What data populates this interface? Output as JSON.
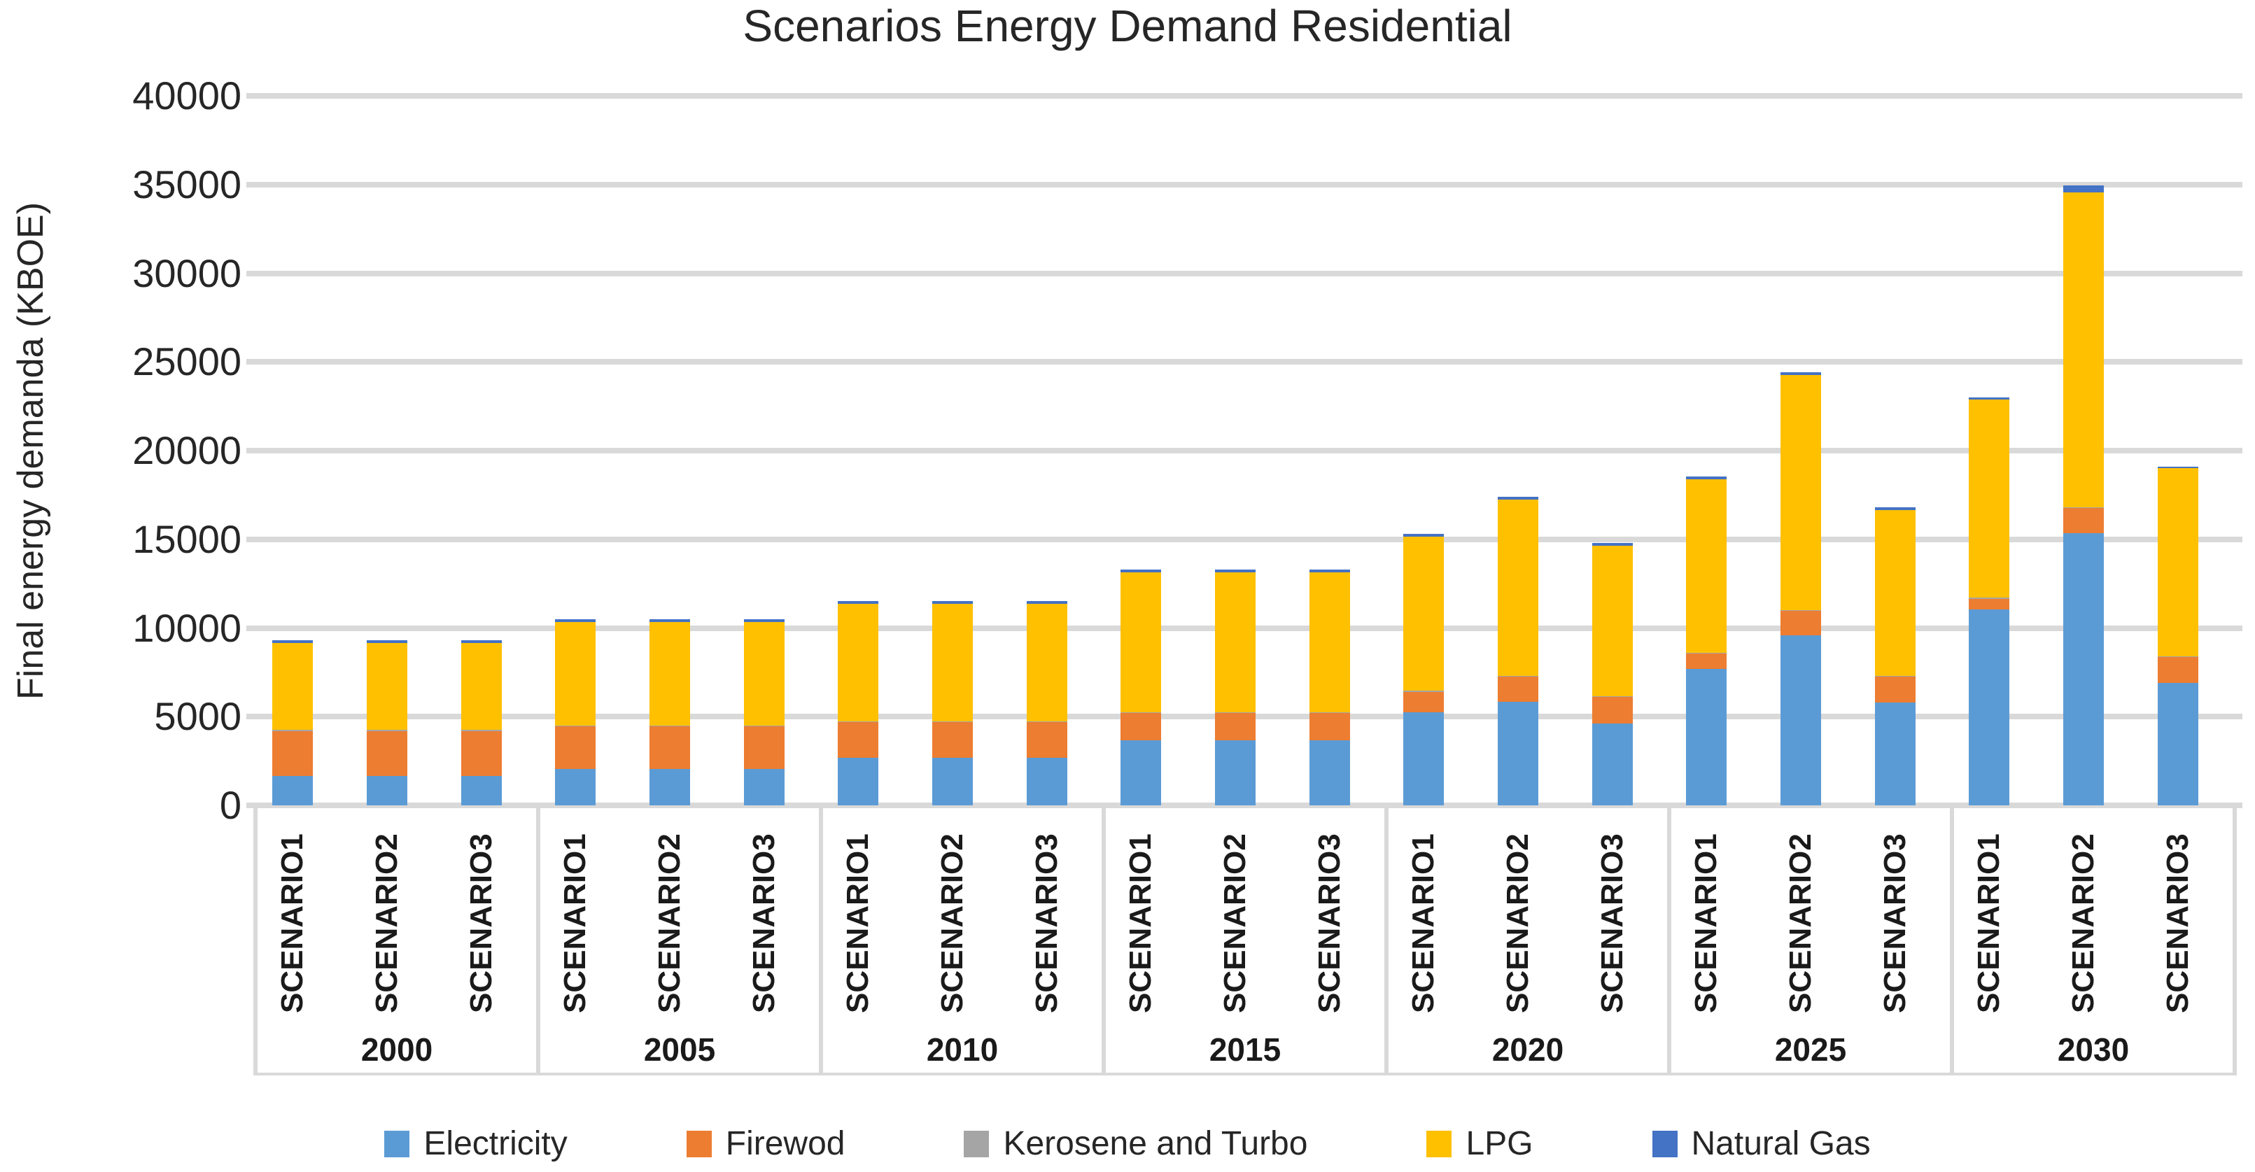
{
  "title": "Scenarios Energy Demand Residential",
  "y_axis": {
    "title": "Final energy demanda (KBOE)",
    "ticks": [
      0,
      5000,
      10000,
      15000,
      20000,
      25000,
      30000,
      35000,
      40000
    ]
  },
  "x_axis": {
    "group_labels": [
      "2000",
      "2005",
      "2010",
      "2015",
      "2020",
      "2025",
      "2030"
    ],
    "scenario_labels": [
      "SCENARIO1",
      "SCENARIO2",
      "SCENARIO3"
    ]
  },
  "legend": [
    "Electricity",
    "Firewod",
    "Kerosene and Turbo",
    "LPG",
    "Natural Gas"
  ],
  "colors": {
    "electricity": "#5B9BD5",
    "firewod": "#ED7D31",
    "kerosene_and_turbo": "#A5A5A5",
    "lpg": "#FFC000",
    "natural_gas": "#4472C4",
    "gridline": "#D9D9D9",
    "text": "#262626"
  },
  "chart_data": {
    "type": "bar",
    "stacked": true,
    "title": "Scenarios Energy Demand Residential",
    "xlabel": "",
    "ylabel": "Final energy demanda (KBOE)",
    "ylim": [
      0,
      40000
    ],
    "yticks": [
      0,
      5000,
      10000,
      15000,
      20000,
      25000,
      30000,
      35000,
      40000
    ],
    "grid": true,
    "legend_position": "bottom",
    "group_labels": [
      "2000",
      "2005",
      "2010",
      "2015",
      "2020",
      "2025",
      "2030"
    ],
    "categories": [
      "2000 SCENARIO1",
      "2000 SCENARIO2",
      "2000 SCENARIO3",
      "2005 SCENARIO1",
      "2005 SCENARIO2",
      "2005 SCENARIO3",
      "2010 SCENARIO1",
      "2010 SCENARIO2",
      "2010 SCENARIO3",
      "2015 SCENARIO1",
      "2015 SCENARIO2",
      "2015 SCENARIO3",
      "2020 SCENARIO1",
      "2020 SCENARIO2",
      "2020 SCENARIO3",
      "2025 SCENARIO1",
      "2025 SCENARIO2",
      "2025 SCENARIO3",
      "2030 SCENARIO1",
      "2030 SCENARIO2",
      "2030 SCENARIO3"
    ],
    "series": [
      {
        "name": "Electricity",
        "color": "#5B9BD5",
        "values": [
          1650,
          1650,
          1650,
          2050,
          2050,
          2050,
          2700,
          2700,
          2700,
          3650,
          3650,
          3650,
          5250,
          5850,
          4600,
          7700,
          9600,
          5800,
          11050,
          15350,
          6900
        ]
      },
      {
        "name": "Firewod",
        "color": "#ED7D31",
        "values": [
          2550,
          2550,
          2550,
          2400,
          2400,
          2400,
          2000,
          2000,
          2000,
          1550,
          1550,
          1550,
          1150,
          1400,
          1500,
          850,
          1350,
          1450,
          600,
          1400,
          1450
        ]
      },
      {
        "name": "Kerosene and Turbo",
        "color": "#A5A5A5",
        "values": [
          50,
          50,
          50,
          50,
          50,
          50,
          50,
          50,
          50,
          50,
          50,
          50,
          50,
          50,
          50,
          50,
          50,
          50,
          50,
          50,
          50
        ]
      },
      {
        "name": "LPG",
        "color": "#FFC000",
        "values": [
          4900,
          4900,
          4900,
          5850,
          5850,
          5850,
          6600,
          6600,
          6600,
          7900,
          7900,
          7900,
          8700,
          9950,
          8500,
          9800,
          13250,
          9350,
          11170,
          17750,
          10600
        ]
      },
      {
        "name": "Natural Gas",
        "color": "#4472C4",
        "values": [
          150,
          150,
          150,
          150,
          150,
          150,
          150,
          150,
          150,
          150,
          150,
          150,
          150,
          150,
          150,
          150,
          150,
          150,
          130,
          400,
          100
        ]
      }
    ],
    "totals": [
      9300,
      9300,
      9300,
      10500,
      10500,
      10500,
      11500,
      11500,
      11500,
      13300,
      13300,
      13300,
      15300,
      17400,
      14800,
      18550,
      24400,
      16800,
      23000,
      34950,
      19100
    ]
  }
}
